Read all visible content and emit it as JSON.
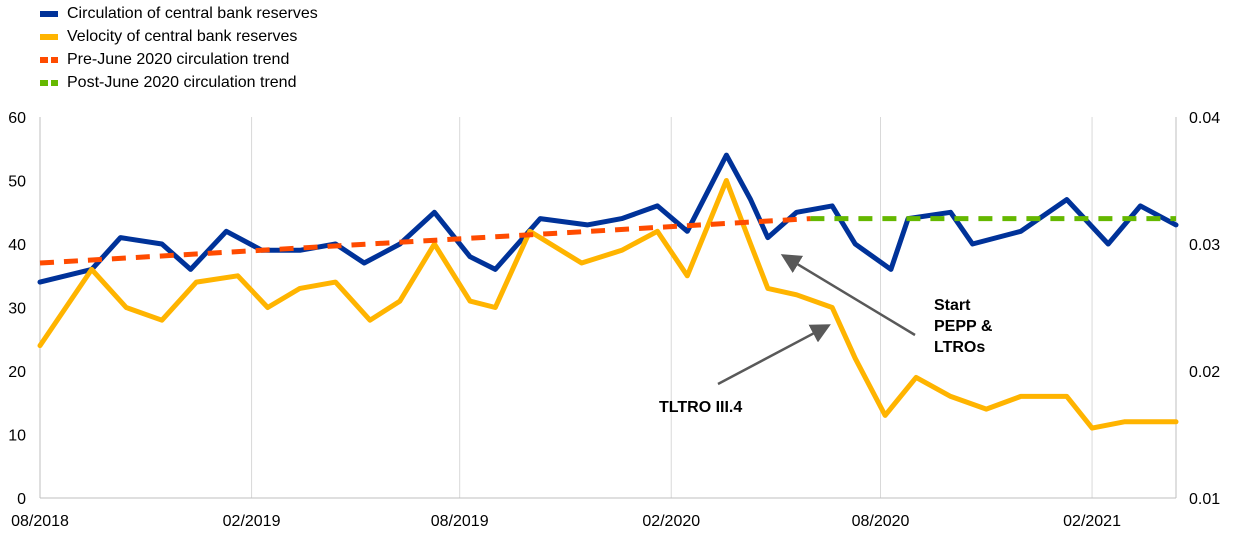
{
  "chart_data": {
    "type": "line",
    "title": "",
    "xlabel": "",
    "ylabel": "",
    "x_ticks": [
      "08/2018",
      "02/2019",
      "08/2019",
      "02/2020",
      "08/2020",
      "02/2021"
    ],
    "x_range": [
      "2018-08-01",
      "2021-04-15"
    ],
    "y_left": {
      "min": 0,
      "max": 60,
      "ticks": [
        "0",
        "10",
        "20",
        "30",
        "40",
        "50",
        "60"
      ]
    },
    "y_right": {
      "min": 0.01,
      "max": 0.04,
      "ticks": [
        "0.01",
        "0.02",
        "0.03",
        "0.04"
      ]
    },
    "grid": "vertical",
    "legend_position": "top-left",
    "series": [
      {
        "name": "Circulation of central bank reserves",
        "axis": "left",
        "color": "#003299",
        "style": "solid",
        "points": [
          [
            "2018-08-01",
            34
          ],
          [
            "2018-09-15",
            36
          ],
          [
            "2018-10-10",
            41
          ],
          [
            "2018-11-15",
            40
          ],
          [
            "2018-12-10",
            36
          ],
          [
            "2019-01-10",
            42
          ],
          [
            "2019-02-10",
            39
          ],
          [
            "2019-03-15",
            39
          ],
          [
            "2019-04-15",
            40
          ],
          [
            "2019-05-10",
            37
          ],
          [
            "2019-06-10",
            40
          ],
          [
            "2019-07-10",
            45
          ],
          [
            "2019-08-10",
            38
          ],
          [
            "2019-09-01",
            36
          ],
          [
            "2019-10-10",
            44
          ],
          [
            "2019-11-20",
            43
          ],
          [
            "2019-12-20",
            44
          ],
          [
            "2020-01-20",
            46
          ],
          [
            "2020-02-15",
            42
          ],
          [
            "2020-03-20",
            54
          ],
          [
            "2020-04-10",
            47
          ],
          [
            "2020-04-25",
            41
          ],
          [
            "2020-05-20",
            45
          ],
          [
            "2020-06-20",
            46
          ],
          [
            "2020-07-10",
            40
          ],
          [
            "2020-08-10",
            36
          ],
          [
            "2020-08-25",
            44
          ],
          [
            "2020-10-01",
            45
          ],
          [
            "2020-10-20",
            40
          ],
          [
            "2020-12-01",
            42
          ],
          [
            "2021-01-10",
            47
          ],
          [
            "2021-02-15",
            40
          ],
          [
            "2021-03-15",
            46
          ],
          [
            "2021-04-15",
            43
          ]
        ]
      },
      {
        "name": "Velocity of central bank reserves",
        "axis": "left",
        "color": "#FFB400",
        "style": "solid",
        "points": [
          [
            "2018-08-01",
            24
          ],
          [
            "2018-09-15",
            36
          ],
          [
            "2018-10-15",
            30
          ],
          [
            "2018-11-15",
            28
          ],
          [
            "2018-12-15",
            34
          ],
          [
            "2019-01-20",
            35
          ],
          [
            "2019-02-15",
            30
          ],
          [
            "2019-03-15",
            33
          ],
          [
            "2019-04-15",
            34
          ],
          [
            "2019-05-15",
            28
          ],
          [
            "2019-06-10",
            31
          ],
          [
            "2019-07-10",
            40
          ],
          [
            "2019-08-10",
            31
          ],
          [
            "2019-09-01",
            30
          ],
          [
            "2019-10-01",
            42
          ],
          [
            "2019-11-15",
            37
          ],
          [
            "2019-12-20",
            39
          ],
          [
            "2020-01-20",
            42
          ],
          [
            "2020-02-15",
            35
          ],
          [
            "2020-03-20",
            50
          ],
          [
            "2020-04-10",
            40
          ],
          [
            "2020-04-25",
            33
          ],
          [
            "2020-05-20",
            32
          ],
          [
            "2020-06-20",
            30
          ],
          [
            "2020-07-10",
            22
          ],
          [
            "2020-08-05",
            13
          ],
          [
            "2020-09-01",
            19
          ],
          [
            "2020-10-01",
            16
          ],
          [
            "2020-11-01",
            14
          ],
          [
            "2020-12-01",
            16
          ],
          [
            "2021-01-10",
            16
          ],
          [
            "2021-02-01",
            11
          ],
          [
            "2021-03-01",
            12
          ],
          [
            "2021-04-15",
            12
          ]
        ]
      },
      {
        "name": "Pre-June 2020 circulation trend",
        "axis": "left",
        "color": "#FF4B00",
        "style": "dashed",
        "points": [
          [
            "2018-08-01",
            37
          ],
          [
            "2020-06-01",
            44
          ]
        ]
      },
      {
        "name": "Post-June 2020 circulation trend",
        "axis": "left",
        "color": "#65B800",
        "style": "dashed",
        "points": [
          [
            "2020-06-01",
            44
          ],
          [
            "2021-04-15",
            44
          ]
        ]
      }
    ],
    "annotations": [
      {
        "lines": [
          "Start",
          "PEPP &",
          "LTROs"
        ],
        "points_to": [
          "2020-05-10",
          38
        ]
      },
      {
        "lines": [
          "TLTRO III.4"
        ],
        "points_to": [
          "2020-06-15",
          27
        ]
      }
    ]
  }
}
